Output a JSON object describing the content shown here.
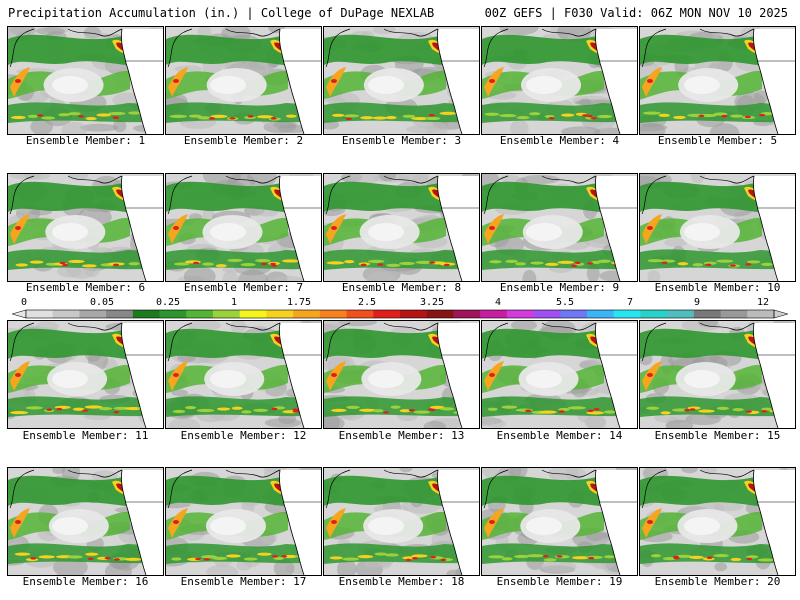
{
  "header": {
    "left_title": "Precipitation Accumulation (in.) | College of DuPage NEXLAB",
    "right_title": "00Z GEFS | F030 Valid: 06Z MON NOV 10 2025"
  },
  "members": [
    {
      "label": "Ensemble Member: 1"
    },
    {
      "label": "Ensemble Member: 2"
    },
    {
      "label": "Ensemble Member: 3"
    },
    {
      "label": "Ensemble Member: 4"
    },
    {
      "label": "Ensemble Member: 5"
    },
    {
      "label": "Ensemble Member: 6"
    },
    {
      "label": "Ensemble Member: 7"
    },
    {
      "label": "Ensemble Member: 8"
    },
    {
      "label": "Ensemble Member: 9"
    },
    {
      "label": "Ensemble Member: 10"
    },
    {
      "label": "Ensemble Member: 11"
    },
    {
      "label": "Ensemble Member: 12"
    },
    {
      "label": "Ensemble Member: 13"
    },
    {
      "label": "Ensemble Member: 14"
    },
    {
      "label": "Ensemble Member: 15"
    },
    {
      "label": "Ensemble Member: 16"
    },
    {
      "label": "Ensemble Member: 17"
    },
    {
      "label": "Ensemble Member: 18"
    },
    {
      "label": "Ensemble Member: 19"
    },
    {
      "label": "Ensemble Member: 20"
    }
  ],
  "colorbar": {
    "labels": [
      "0",
      "0.05",
      "0.25",
      "1",
      "1.75",
      "2.5",
      "3.25",
      "4",
      "5.5",
      "7",
      "9",
      "12"
    ],
    "colors": [
      "#e0e0e0",
      "#c8c8c8",
      "#a8a8a8",
      "#888888",
      "#1e7a1e",
      "#2f962f",
      "#55b436",
      "#9bd23c",
      "#f5f51e",
      "#f5d21e",
      "#f5a51e",
      "#f5821e",
      "#f0501e",
      "#e11e1e",
      "#b41414",
      "#871414",
      "#a0145a",
      "#c81ea0",
      "#d23cdc",
      "#a050f0",
      "#6e78f5",
      "#3cb4f5",
      "#28e6f0",
      "#28d2c8",
      "#50bebe",
      "#787878",
      "#999999",
      "#bbbbbb"
    ]
  }
}
